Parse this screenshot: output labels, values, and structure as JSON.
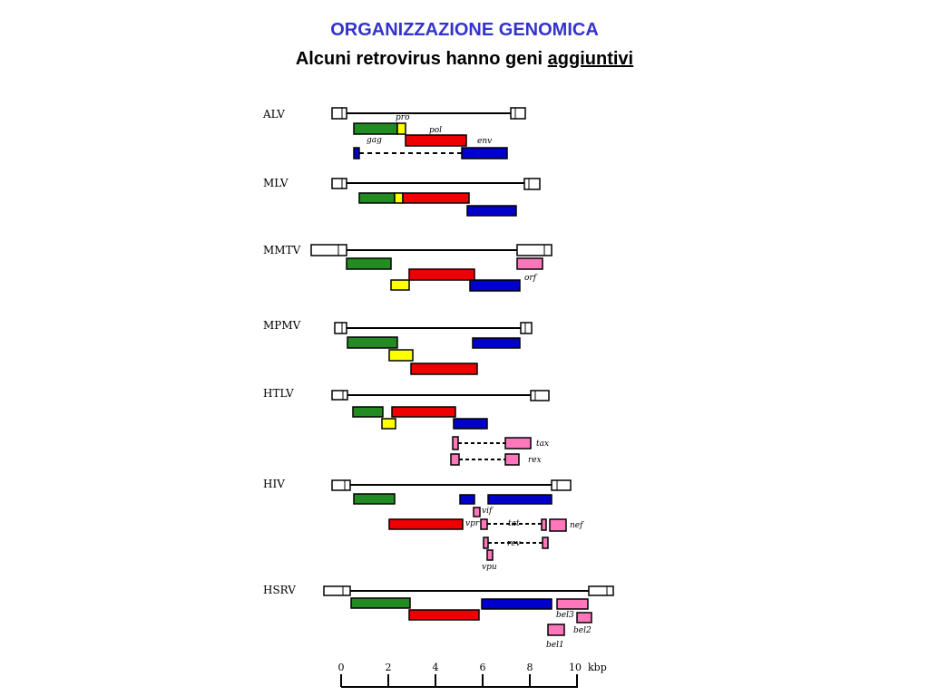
{
  "header": {
    "title": "ORGANIZZAZIONE GENOMICA",
    "subtitle_prefix": "Alcuni retrovirus hanno geni ",
    "subtitle_emph": "aggiuntivi"
  },
  "colors": {
    "gag": "#228B22",
    "pro": "#ffff00",
    "pol": "#ee0000",
    "env": "#0000cc",
    "accessory": "#ff77bb",
    "ltr": "#ffffff"
  },
  "viruses": [
    {
      "name": "ALV"
    },
    {
      "name": "MLV"
    },
    {
      "name": "MMTV"
    },
    {
      "name": "MPMV"
    },
    {
      "name": "HTLV"
    },
    {
      "name": "HIV"
    },
    {
      "name": "HSRV"
    }
  ],
  "gene_labels": {
    "pro": "pro",
    "gag": "gag",
    "pol": "pol",
    "env": "env",
    "orf": "orf",
    "tax": "tax",
    "rex": "rex",
    "vif": "vif",
    "vpr": "vpr",
    "tat": "tat",
    "nef": "nef",
    "rev": "rev",
    "vpu": "vpu",
    "bel3": "bel3",
    "bel2": "bel2",
    "bel1": "bel1"
  },
  "scale": {
    "ticks": [
      "0",
      "2",
      "4",
      "6",
      "8",
      "10"
    ],
    "unit": "kbp"
  }
}
